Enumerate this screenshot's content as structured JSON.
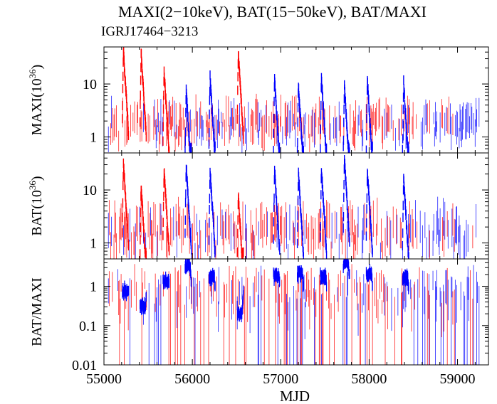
{
  "chart_data": {
    "type": "line",
    "title": "MAXI(2−10keV), BAT(15−50keV), BAT/MAXI",
    "subtitle": "IGRJ17464−3213",
    "xlabel": "MJD",
    "xlim": [
      55000,
      59350
    ],
    "x_ticks": [
      "55000",
      "56000",
      "57000",
      "58000",
      "59000"
    ],
    "series_colors": {
      "red": "#ff0000",
      "blue": "#0000ff"
    },
    "outbursts_mjd": [
      {
        "mjd": 55220,
        "color": "#ff0000",
        "maxi_peak": 45,
        "bat_peak": 35
      },
      {
        "mjd": 55420,
        "color": "#ff0000",
        "maxi_peak": 40,
        "bat_peak": 12
      },
      {
        "mjd": 55680,
        "color": "#ff0000",
        "maxi_peak": 18,
        "bat_peak": 25
      },
      {
        "mjd": 55930,
        "color": "#0000ff",
        "maxi_peak": 8,
        "bat_peak": 30
      },
      {
        "mjd": 56200,
        "color": "#0000ff",
        "maxi_peak": 14,
        "bat_peak": 25
      },
      {
        "mjd": 56520,
        "color": "#ff0000",
        "maxi_peak": 40,
        "bat_peak": 8
      },
      {
        "mjd": 56930,
        "color": "#0000ff",
        "maxi_peak": 13,
        "bat_peak": 25
      },
      {
        "mjd": 57200,
        "color": "#0000ff",
        "maxi_peak": 10,
        "bat_peak": 22
      },
      {
        "mjd": 57460,
        "color": "#0000ff",
        "maxi_peak": 14,
        "bat_peak": 25
      },
      {
        "mjd": 57720,
        "color": "#0000ff",
        "maxi_peak": 10,
        "bat_peak": 40
      },
      {
        "mjd": 57980,
        "color": "#0000ff",
        "maxi_peak": 12,
        "bat_peak": 25
      },
      {
        "mjd": 58390,
        "color": "#0000ff",
        "maxi_peak": 11,
        "bat_peak": 18
      }
    ],
    "panels": [
      {
        "name": "maxi",
        "ylabel": "MAXI(10",
        "ylabel_sup": "36",
        "ylabel_close": ")",
        "scale": "log",
        "ylim": [
          0.5,
          50
        ],
        "y_ticks": [
          "10",
          "1"
        ],
        "y_tick_values": [
          10,
          1
        ]
      },
      {
        "name": "bat",
        "ylabel": "BAT(10",
        "ylabel_sup": "36",
        "ylabel_close": ")",
        "scale": "log",
        "ylim": [
          0.5,
          50
        ],
        "y_ticks": [
          "10",
          "1"
        ],
        "y_tick_values": [
          10,
          1
        ]
      },
      {
        "name": "ratio",
        "ylabel": "BAT/MAXI",
        "scale": "log",
        "ylim": [
          0.01,
          5
        ],
        "y_ticks": [
          "1",
          "0.1",
          "0.01"
        ],
        "y_tick_values": [
          1,
          0.1,
          0.01
        ]
      }
    ]
  }
}
